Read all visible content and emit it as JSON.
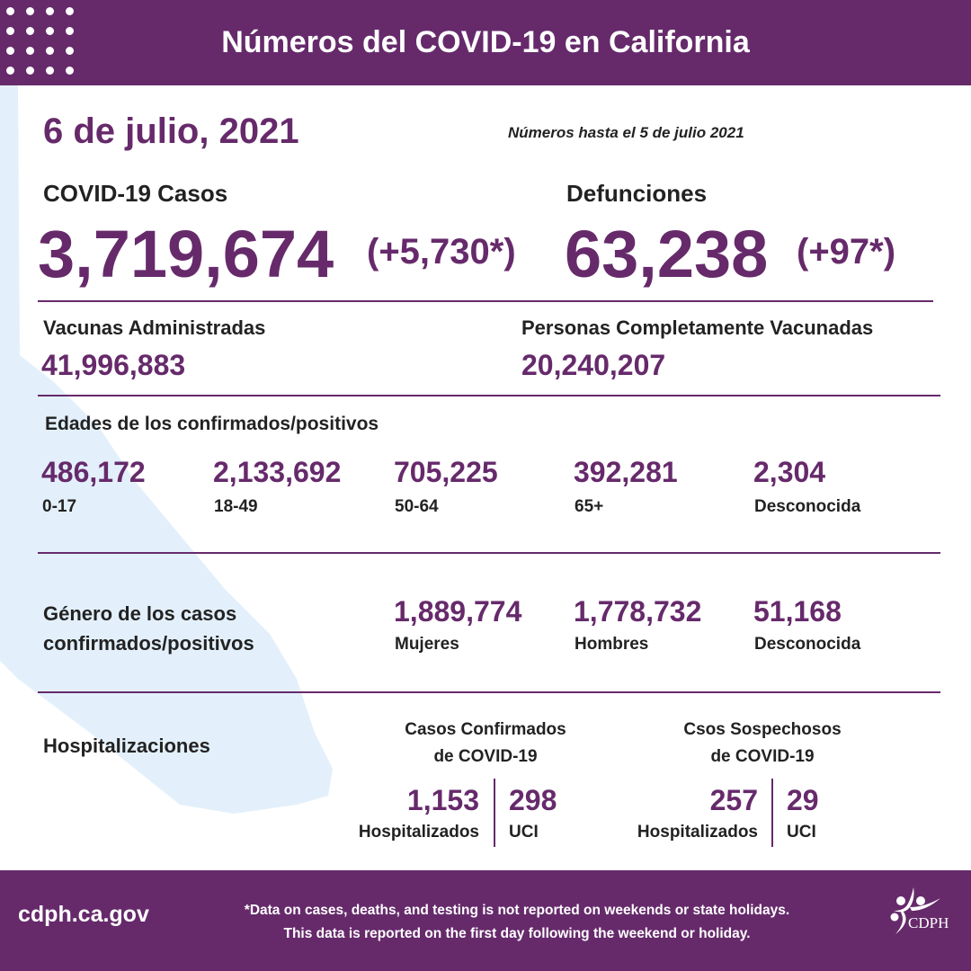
{
  "colors": {
    "brand": "#662a6b",
    "map": "#e3f0fb"
  },
  "header": {
    "title": "Números del COVID-19 en California"
  },
  "date": "6 de julio, 2021",
  "as_of": "Números hasta el 5 de julio 2021",
  "cases": {
    "label": "COVID-19 Casos",
    "total": "3,719,674",
    "new": "(+5,730*)"
  },
  "deaths": {
    "label": "Defunciones",
    "total": "63,238",
    "new": "(+97*)"
  },
  "vaccines": {
    "label": "Vacunas Administradas",
    "value": "41,996,883"
  },
  "fully": {
    "label": "Personas Completamente Vacunadas",
    "value": "20,240,207"
  },
  "ages": {
    "heading": "Edades de los confirmados/positivos",
    "items": [
      {
        "value": "486,172",
        "label": "0-17"
      },
      {
        "value": "2,133,692",
        "label": "18-49"
      },
      {
        "value": "705,225",
        "label": "50-64"
      },
      {
        "value": "392,281",
        "label": "65+"
      },
      {
        "value": "2,304",
        "label": "Desconocida"
      }
    ]
  },
  "gender": {
    "heading_1": "Género de los casos",
    "heading_2": "confirmados/positivos",
    "items": [
      {
        "value": "1,889,774",
        "label": "Mujeres"
      },
      {
        "value": "1,778,732",
        "label": "Hombres"
      },
      {
        "value": "51,168",
        "label": "Desconocida"
      }
    ]
  },
  "hosp": {
    "heading": "Hospitalizaciones",
    "confirmed": {
      "title_1": "Casos Confirmados",
      "title_2": "de COVID-19",
      "hosp": "1,153",
      "hosp_label": "Hospitalizados",
      "icu": "298",
      "icu_label": "UCI"
    },
    "suspected": {
      "title_1": "Csos Sospechosos",
      "title_2": "de COVID-19",
      "hosp": "257",
      "hosp_label": "Hospitalizados",
      "icu": "29",
      "icu_label": "UCI"
    }
  },
  "footer": {
    "site": "cdph.ca.gov",
    "note_1": "*Data on cases, deaths, and testing is not reported on weekends or state holidays.",
    "note_2": "This data is reported on the first day following the weekend or holiday.",
    "logo": "CDPH"
  }
}
